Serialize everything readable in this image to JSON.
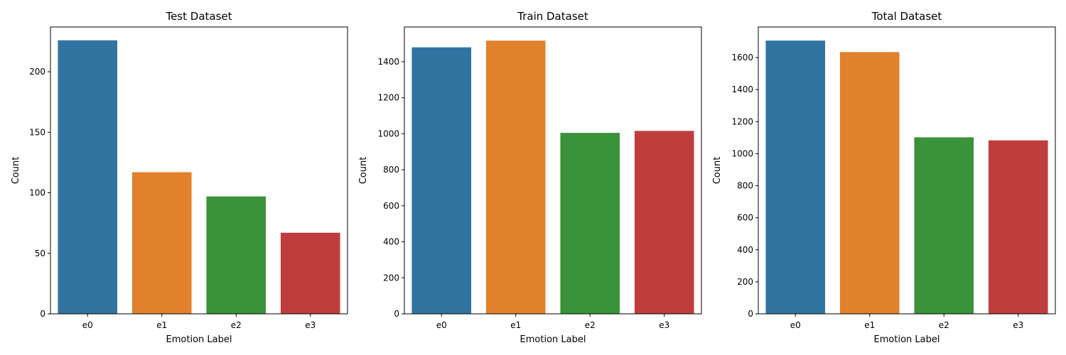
{
  "colors": [
    "#3274a1",
    "#e1812c",
    "#3a923a",
    "#c03d3e"
  ],
  "chart_data": [
    {
      "type": "bar",
      "title": "Test Dataset",
      "xlabel": "Emotion Label",
      "ylabel": "Count",
      "categories": [
        "e0",
        "e1",
        "e2",
        "e3"
      ],
      "values": [
        226,
        117,
        97,
        67
      ],
      "ylim": [
        0,
        237
      ],
      "yticks": [
        0,
        50,
        100,
        150,
        200
      ],
      "grid": false,
      "legend": "none"
    },
    {
      "type": "bar",
      "title": "Train Dataset",
      "xlabel": "Emotion Label",
      "ylabel": "Count",
      "categories": [
        "e0",
        "e1",
        "e2",
        "e3"
      ],
      "values": [
        1480,
        1517,
        1005,
        1016
      ],
      "ylim": [
        0,
        1593
      ],
      "yticks": [
        0,
        200,
        400,
        600,
        800,
        1000,
        1200,
        1400
      ],
      "grid": false,
      "legend": "none"
    },
    {
      "type": "bar",
      "title": "Total Dataset",
      "xlabel": "Emotion Label",
      "ylabel": "Count",
      "categories": [
        "e0",
        "e1",
        "e2",
        "e3"
      ],
      "values": [
        1706,
        1634,
        1102,
        1083
      ],
      "ylim": [
        0,
        1791
      ],
      "yticks": [
        0,
        200,
        400,
        600,
        800,
        1000,
        1200,
        1400,
        1600
      ],
      "grid": false,
      "legend": "none"
    }
  ]
}
